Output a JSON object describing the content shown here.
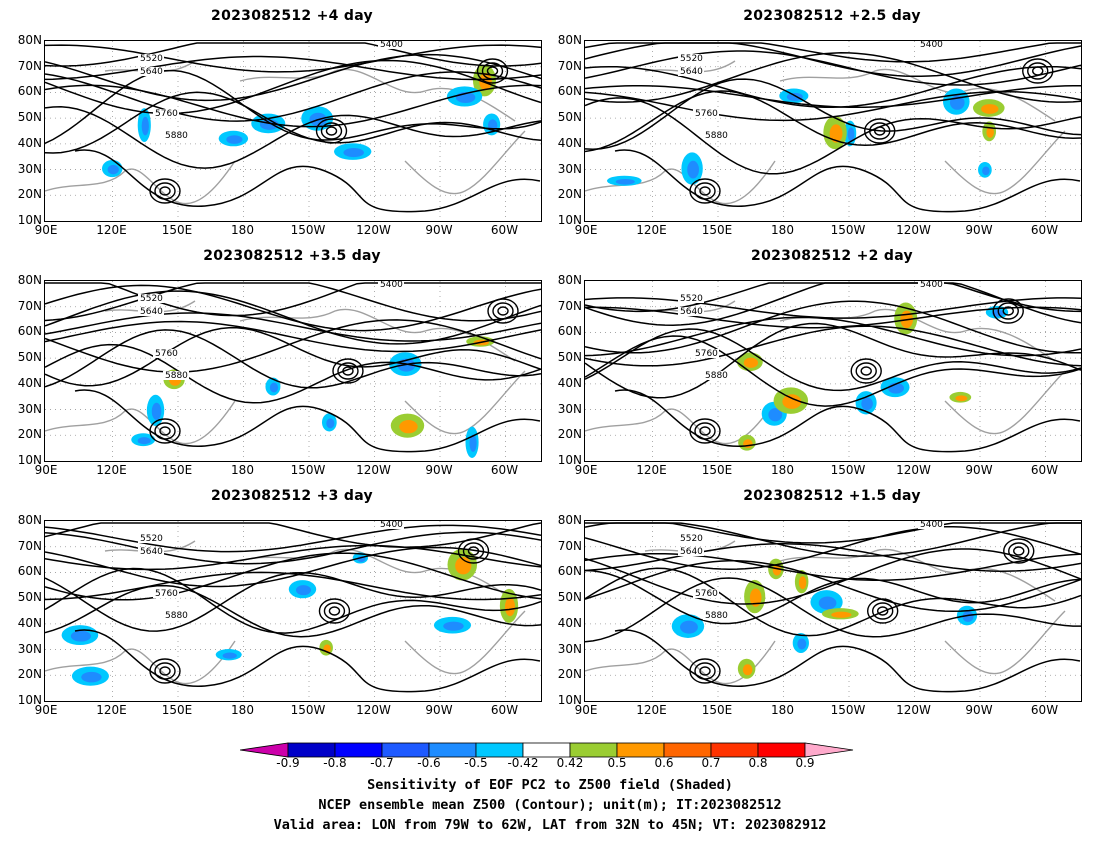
{
  "panels": [
    {
      "title": "2023082512 +4 day"
    },
    {
      "title": "2023082512 +2.5 day"
    },
    {
      "title": "2023082512 +3.5 day"
    },
    {
      "title": "2023082512 +2 day"
    },
    {
      "title": "2023082512 +3 day"
    },
    {
      "title": "2023082512 +1.5 day"
    }
  ],
  "axes": {
    "lat_labels": [
      "80N",
      "70N",
      "60N",
      "50N",
      "40N",
      "30N",
      "20N",
      "10N"
    ],
    "lon_labels": [
      "90E",
      "120E",
      "150E",
      "180",
      "150W",
      "120W",
      "90W",
      "60W"
    ]
  },
  "contour_labels": [
    "5400",
    "5520",
    "5640",
    "5760",
    "5880"
  ],
  "colorbar": {
    "labels": [
      "-0.9",
      "-0.8",
      "-0.7",
      "-0.6",
      "-0.5",
      "-0.42",
      "0.42",
      "0.5",
      "0.6",
      "0.7",
      "0.8",
      "0.9"
    ],
    "colors": [
      "#cc00aa",
      "#0000c8",
      "#0000ff",
      "#1e5aff",
      "#1e8cff",
      "#00c8ff",
      "#ffffff",
      "#9acd32",
      "#ff9900",
      "#ff6600",
      "#ff3300",
      "#ff0000",
      "#ffaacc"
    ]
  },
  "caption": {
    "line1": "Sensitivity of EOF PC2 to Z500 field (Shaded)",
    "line2": "NCEP ensemble mean Z500 (Contour); unit(m); IT:2023082512",
    "line3": "Valid area: LON from 79W to 62W, LAT from 32N to 45N; VT: 2023082912"
  }
}
